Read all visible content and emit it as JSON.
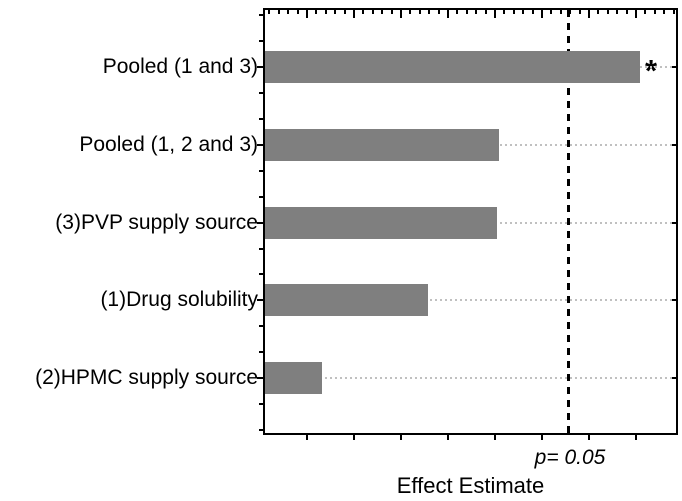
{
  "chart_data": {
    "type": "bar",
    "orientation": "horizontal",
    "title": "",
    "xlabel": "Effect Estimate",
    "ylabel": "",
    "categories": [
      "Pooled (1 and 3)",
      "Pooled (1, 2 and 3)",
      "(3)PVP supply source",
      "(1)Drug solubility",
      "(2)HPMC supply source"
    ],
    "values_fraction_of_axis": [
      0.912,
      0.569,
      0.564,
      0.397,
      0.139
    ],
    "values_relative_to_p05_threshold": [
      1.236,
      0.771,
      0.765,
      0.538,
      0.188
    ],
    "significant": [
      true,
      false,
      false,
      false,
      false
    ],
    "significance_marker": "*",
    "reference_line": {
      "label": "p= 0.05",
      "fraction_of_axis": 0.738,
      "style": "dashed-vertical"
    },
    "axis_tick_labels": "none",
    "grid": "dotted horizontal gridline at each category center",
    "legend": "none",
    "colors": {
      "bar": "#7f7f7f",
      "gridline": "#c0c0c0",
      "axis": "#000000",
      "reference_line": "#000000",
      "text": "#000000",
      "background": "#ffffff"
    }
  }
}
